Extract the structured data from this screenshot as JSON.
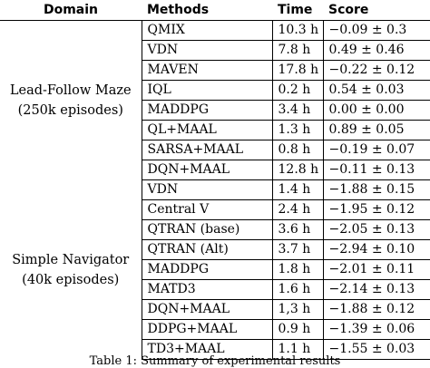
{
  "table": {
    "headers": {
      "domain": "Domain",
      "methods": "Methods",
      "time": "Time",
      "score": "Score"
    },
    "groups": [
      {
        "domain_line1": "Lead-Follow Maze",
        "domain_line2": "(250k episodes)",
        "rows": [
          {
            "method": "QMIX",
            "time": "10.3 h",
            "score": "−0.09 ± 0.3"
          },
          {
            "method": "VDN",
            "time": "7.8 h",
            "score": "0.49 ± 0.46"
          },
          {
            "method": "MAVEN",
            "time": "17.8 h",
            "score": "−0.22 ± 0.12"
          },
          {
            "method": "IQL",
            "time": "0.2 h",
            "score": "0.54 ± 0.03"
          },
          {
            "method": "MADDPG",
            "time": "3.4 h",
            "score": "0.00 ± 0.00"
          },
          {
            "method": "QL+MAAL",
            "time": "1.3 h",
            "score": "0.89 ± 0.05"
          },
          {
            "method": "SARSA+MAAL",
            "time": "0.8 h",
            "score": "−0.19 ± 0.07"
          },
          {
            "method": "DQN+MAAL",
            "time": "12.8 h",
            "score": "−0.11 ± 0.13"
          }
        ]
      },
      {
        "domain_line1": "Simple Navigator",
        "domain_line2": "(40k episodes)",
        "rows": [
          {
            "method": "VDN",
            "time": "1.4 h",
            "score": "−1.88 ± 0.15"
          },
          {
            "method": "Central V",
            "time": "2.4 h",
            "score": "−1.95 ± 0.12"
          },
          {
            "method": "QTRAN (base)",
            "time": "3.6 h",
            "score": "−2.05 ± 0.13"
          },
          {
            "method": "QTRAN (Alt)",
            "time": "3.7 h",
            "score": "−2.94 ± 0.10"
          },
          {
            "method": "MADDPG",
            "time": "1.8 h",
            "score": "−2.01 ± 0.11"
          },
          {
            "method": "MATD3",
            "time": "1.6 h",
            "score": "−2.14 ± 0.13"
          },
          {
            "method": "DQN+MAAL",
            "time": "1,3 h",
            "score": "−1.88 ± 0.12"
          },
          {
            "method": "DDPG+MAAL",
            "time": "0.9 h",
            "score": "−1.39 ± 0.06"
          },
          {
            "method": "TD3+MAAL",
            "time": "1.1 h",
            "score": "−1.55 ± 0.03"
          }
        ]
      }
    ]
  },
  "caption": "Table 1: Summary of experimental results"
}
